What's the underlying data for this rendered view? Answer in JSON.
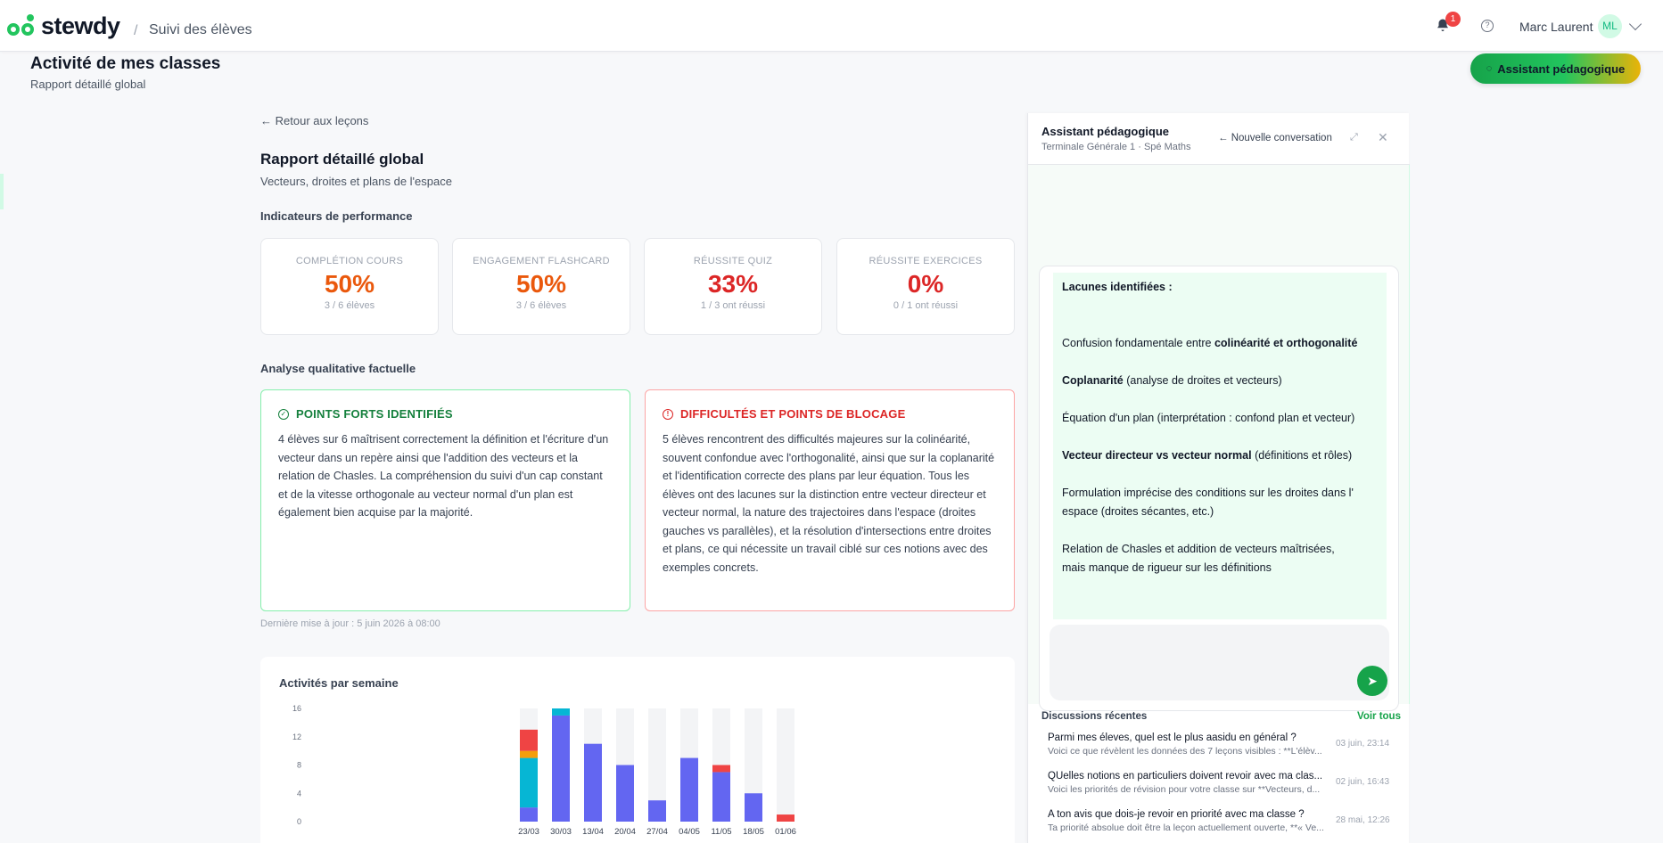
{
  "app": {
    "brand": "stewdy",
    "section": "Suivi des élèves"
  },
  "header": {
    "notif_count": "1",
    "help_icon": "?",
    "user_name": "Marc Laurent",
    "user_initials": "ML"
  },
  "page": {
    "title": "Activité de mes classes",
    "subtitle": "Rapport détaillé global",
    "assistant_button": "Assistant pédagogique"
  },
  "report": {
    "back_label": "Retour aux leçons",
    "title": "Rapport détaillé global",
    "subtitle": "Vecteurs, droites et plans de l'espace",
    "kpi_title": "Indicateurs de performance",
    "kpis": [
      {
        "label": "COMPLÉTION COURS",
        "value": "50%",
        "sub": "3 / 6 élèves",
        "color": "#ea580c"
      },
      {
        "label": "ENGAGEMENT FLASHCARD",
        "value": "50%",
        "sub": "3 / 6 élèves",
        "color": "#ea580c"
      },
      {
        "label": "RÉUSSITE QUIZ",
        "value": "33%",
        "sub": "1 / 3 ont réussi",
        "color": "#dc2626"
      },
      {
        "label": "RÉUSSITE EXERCICES",
        "value": "0%",
        "sub": "0 / 1 ont réussi",
        "color": "#dc2626"
      }
    ],
    "qual_title": "Analyse qualitative factuelle",
    "strengths": {
      "title": "POINTS FORTS IDENTIFIÉS",
      "text": "4 élèves sur 6 maîtrisent correctement la définition et l'écriture d'un vecteur dans un repère ainsi que l'addition des vecteurs et la relation de Chasles. La compréhension du suivi d'un cap constant et de la vitesse orthogonale au vecteur normal d'un plan est également bien acquise par la majorité."
    },
    "difficulties": {
      "title": "DIFFICULTÉS ET POINTS DE BLOCAGE",
      "text": "5 élèves rencontrent des difficultés majeures sur la colinéarité, souvent confondue avec l'orthogonalité, ainsi que sur la coplanarité et l'identification correcte des plans par leur équation. Tous les élèves ont des lacunes sur la distinction entre vecteur directeur et vecteur normal, la nature des trajectoires dans l'espace (droites gauches vs parallèles), et la résolution d'intersections entre droites et plans, ce qui nécessite un travail ciblé sur ces notions avec des exemples concrets."
    },
    "updated": "Dernière mise à jour : 5 juin 2026 à 08:00"
  },
  "chart_data": {
    "type": "bar",
    "title": "Activités par semaine",
    "categories": [
      "23/03",
      "30/03",
      "13/04",
      "20/04",
      "27/04",
      "04/05",
      "11/05",
      "18/05",
      "01/06"
    ],
    "ylim": [
      0,
      16
    ],
    "yticks": [
      0,
      4,
      8,
      12,
      16
    ],
    "series": [
      {
        "color": "#6366f1",
        "values": [
          2,
          15,
          11,
          8,
          3,
          9,
          7,
          4,
          0
        ]
      },
      {
        "color": "#06b6d4",
        "values": [
          7,
          1,
          0,
          0,
          0,
          0,
          0,
          0,
          0
        ]
      },
      {
        "color": "#f59e0b",
        "values": [
          1,
          0,
          0,
          0,
          0,
          0,
          0,
          0,
          0
        ]
      },
      {
        "color": "#ef4444",
        "values": [
          3,
          0,
          0,
          0,
          0,
          0,
          1,
          0,
          1
        ]
      }
    ],
    "background_color": "#f3f4f6"
  },
  "chat": {
    "title": "Assistant pédagogique",
    "subtitle": "Terminale Générale 1 · Spé Maths",
    "new_conversation": "Nouvelle conversation",
    "message_lines": [
      {
        "bold": "Lacunes identifiées :",
        "rest": ""
      },
      {
        "bold": "",
        "rest": ""
      },
      {
        "bold": "",
        "rest": ""
      },
      {
        "pre": "Confusion fondamentale entre ",
        "bold": "colinéarité et orthogonalité",
        "rest": ""
      },
      {
        "bold": "",
        "rest": ""
      },
      {
        "bold": "Coplanarité",
        "rest": " (analyse de droites et vecteurs)"
      },
      {
        "bold": "",
        "rest": ""
      },
      {
        "bold": "",
        "rest": "Équation d'un plan (interprétation : confond plan et vecteur)"
      },
      {
        "bold": "",
        "rest": ""
      },
      {
        "bold": "Vecteur directeur vs vecteur normal",
        "rest": " (définitions et rôles)"
      },
      {
        "bold": "",
        "rest": ""
      },
      {
        "bold": "",
        "rest": "Formulation imprécise des conditions sur les droites dans l'"
      },
      {
        "bold": "",
        "rest": "espace (droites sécantes, etc.)"
      },
      {
        "bold": "",
        "rest": ""
      },
      {
        "bold": "",
        "rest": "Relation de Chasles et addition de vecteurs maîtrisées,"
      },
      {
        "bold": "",
        "rest": "mais manque de rigueur sur les définitions"
      }
    ],
    "recent_title": "Discussions récentes",
    "see_all": "Voir tous",
    "discussions": [
      {
        "q": "Parmi mes éleves, quel est le plus aasidu en général ?",
        "a": "Voici ce que révèlent les données des 7 leçons visibles : **L'élèv...",
        "t": "03 juin, 23:14"
      },
      {
        "q": "QUelles notions en particuliers doivent revoir avec ma clas...",
        "a": "Voici les priorités de révision pour votre classe sur **Vecteurs, d...",
        "t": "02 juin, 16:43"
      },
      {
        "q": "A ton avis que dois-je revoir en priorité avec ma classe ?",
        "a": "Ta priorité absolue doit être la leçon actuellement ouverte, **« Ve...",
        "t": "28 mai, 12:26"
      }
    ]
  }
}
